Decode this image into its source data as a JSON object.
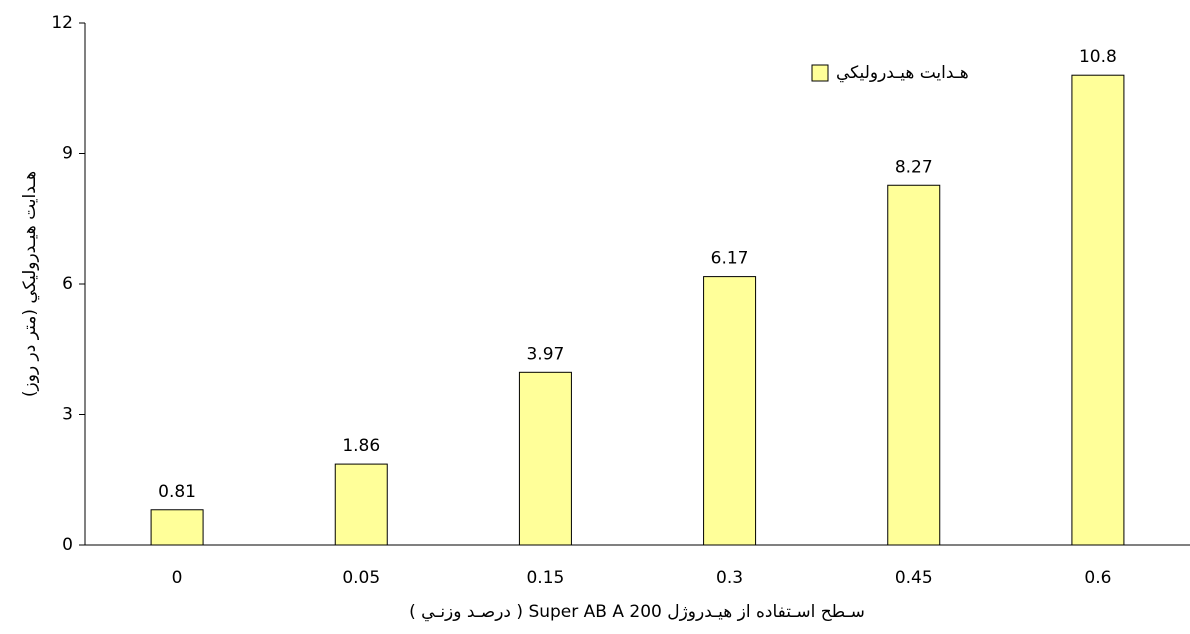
{
  "chart_data": {
    "type": "bar",
    "xlabel": "سـطح اسـتفاده از هيـدروژل Super AB A 200 ( درصـد وزنـي )",
    "ylabel": "هـدايت هيـدروليكي (متر در روز)",
    "categories": [
      "0",
      "0.05",
      "0.15",
      "0.3",
      "0.45",
      "0.6"
    ],
    "series": [
      {
        "name": "هـدايت هيـدروليكي",
        "color": "#ffff99",
        "values": [
          0.81,
          1.86,
          3.97,
          6.17,
          8.27,
          10.8
        ]
      }
    ],
    "ylim": [
      0,
      12
    ],
    "yticks": [
      0,
      3,
      6,
      9,
      12
    ],
    "grid": false,
    "legend": "upper right"
  }
}
